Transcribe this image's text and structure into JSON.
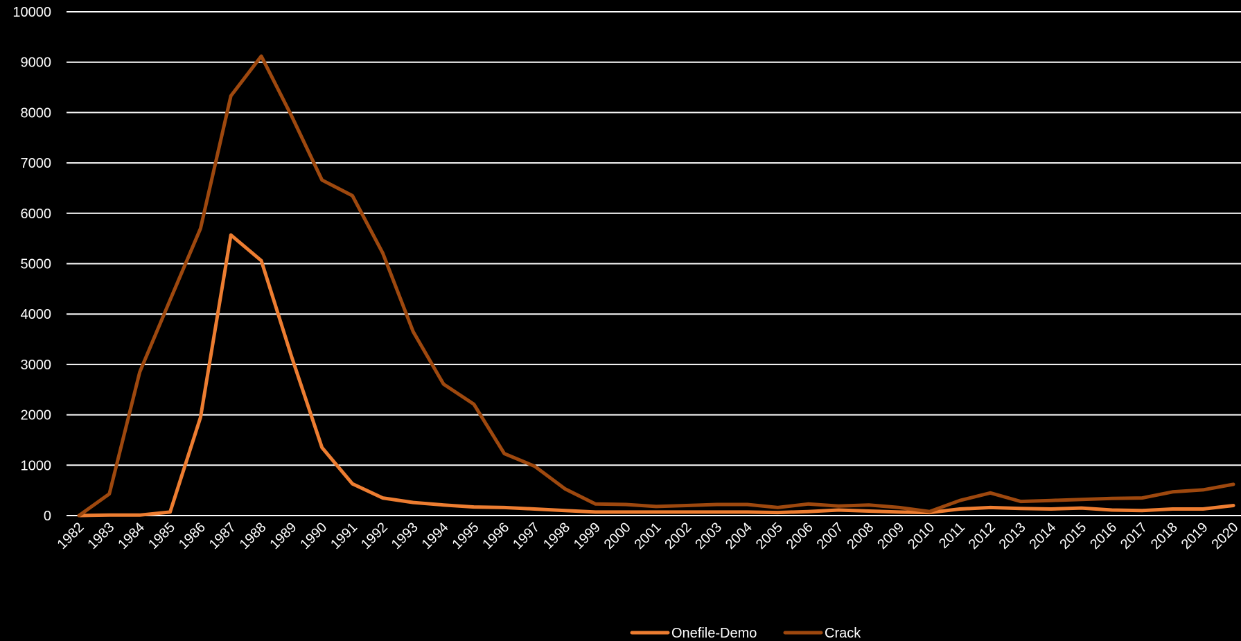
{
  "chart_data": {
    "type": "line",
    "title": "",
    "xlabel": "",
    "ylabel": "",
    "ylim": [
      0,
      10000
    ],
    "yticks": [
      0,
      1000,
      2000,
      3000,
      4000,
      5000,
      6000,
      7000,
      8000,
      9000,
      10000
    ],
    "grid": true,
    "legend_position": "bottom",
    "background": "#000000",
    "categories": [
      "1982",
      "1983",
      "1984",
      "1985",
      "1986",
      "1987",
      "1988",
      "1989",
      "1990",
      "1991",
      "1992",
      "1993",
      "1994",
      "1995",
      "1996",
      "1997",
      "1998",
      "1999",
      "2000",
      "2001",
      "2002",
      "2003",
      "2004",
      "2005",
      "2006",
      "2007",
      "2008",
      "2009",
      "2010",
      "2011",
      "2012",
      "2013",
      "2014",
      "2015",
      "2016",
      "2017",
      "2018",
      "2019",
      "2020"
    ],
    "series": [
      {
        "name": "Onefile-Demo",
        "color": "#ED7D31",
        "values": [
          0,
          10,
          10,
          70,
          1950,
          5570,
          5060,
          3150,
          1350,
          630,
          350,
          260,
          210,
          170,
          160,
          130,
          100,
          70,
          70,
          70,
          70,
          70,
          70,
          60,
          80,
          110,
          90,
          70,
          60,
          130,
          160,
          140,
          130,
          150,
          110,
          100,
          130,
          130,
          200
        ]
      },
      {
        "name": "Crack",
        "color": "#9E480E",
        "values": [
          0,
          430,
          2850,
          4280,
          5700,
          8330,
          9120,
          7930,
          6660,
          6350,
          5210,
          3650,
          2610,
          2210,
          1230,
          980,
          530,
          230,
          220,
          180,
          200,
          220,
          220,
          160,
          230,
          190,
          210,
          160,
          80,
          300,
          450,
          280,
          300,
          320,
          340,
          350,
          470,
          510,
          620
        ]
      }
    ]
  }
}
